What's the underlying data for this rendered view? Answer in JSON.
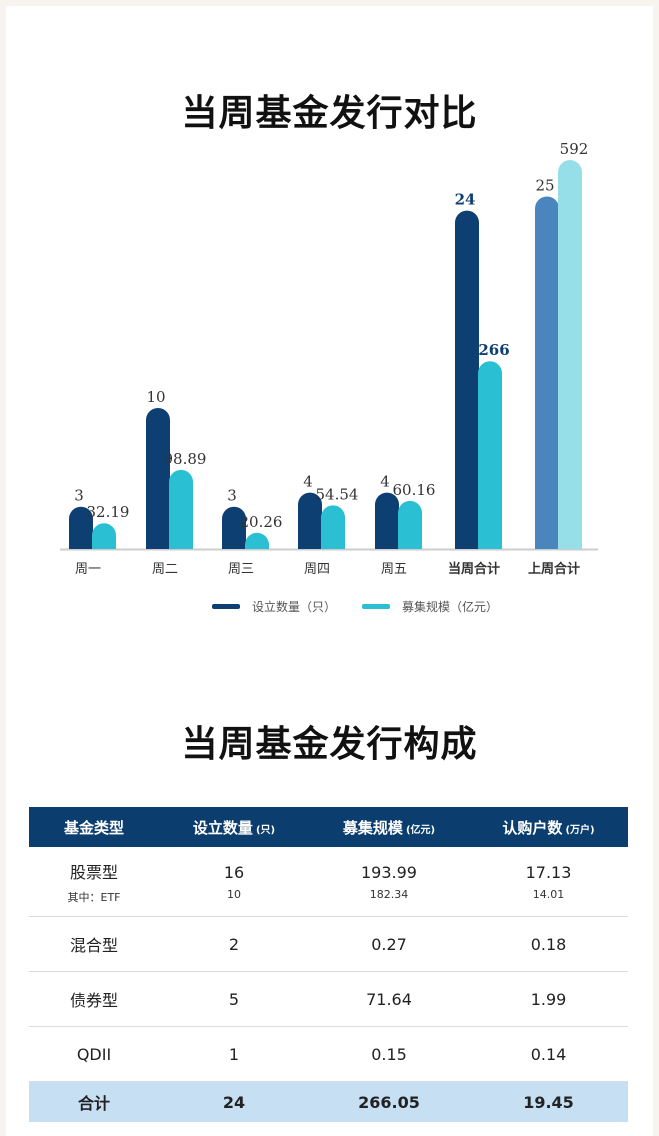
{
  "title1": "当周基金发行对比",
  "title2": "当周基金发行构成",
  "chart_data": {
    "type": "bar",
    "categories": [
      "周一",
      "周二",
      "周三",
      "周四",
      "周五",
      "当周合计",
      "上周合计"
    ],
    "series": [
      {
        "name": "设立数量（只）",
        "values": [
          3,
          10,
          3,
          4,
          4,
          24,
          25
        ]
      },
      {
        "name": "募集规模（亿元）",
        "values": [
          32.19,
          98.89,
          20.26,
          54.54,
          60.16,
          266,
          592
        ]
      }
    ],
    "labels": {
      "count": [
        "3",
        "10",
        "3",
        "4",
        "4",
        "24",
        "25"
      ],
      "scale": [
        "32.19",
        "98.89",
        "20.26",
        "54.54",
        "60.16",
        "266",
        "592"
      ]
    },
    "colors": {
      "count": "#0d3f73",
      "scale": "#2bbfd3",
      "last_week_count": "#4a86bd",
      "last_week_scale": "#97dfe8"
    },
    "legend_position": "bottom"
  },
  "legend": {
    "count": "设立数量（只）",
    "scale": "募集规模（亿元）"
  },
  "table": {
    "headers": [
      {
        "label": "基金类型",
        "unit": ""
      },
      {
        "label": "设立数量",
        "unit": "(只)"
      },
      {
        "label": "募集规模",
        "unit": "(亿元)"
      },
      {
        "label": "认购户数",
        "unit": "(万户)"
      }
    ],
    "rows": [
      {
        "type": "股票型",
        "sub": "其中：ETF",
        "count": "16",
        "count_sub": "10",
        "scale": "193.99",
        "scale_sub": "182.34",
        "users": "17.13",
        "users_sub": "14.01"
      },
      {
        "type": "混合型",
        "count": "2",
        "scale": "0.27",
        "users": "0.18"
      },
      {
        "type": "债券型",
        "count": "5",
        "scale": "71.64",
        "users": "1.99"
      },
      {
        "type": "QDII",
        "count": "1",
        "scale": "0.15",
        "users": "0.14"
      }
    ],
    "total": {
      "type": "合计",
      "count": "24",
      "scale": "266.05",
      "users": "19.45"
    }
  }
}
